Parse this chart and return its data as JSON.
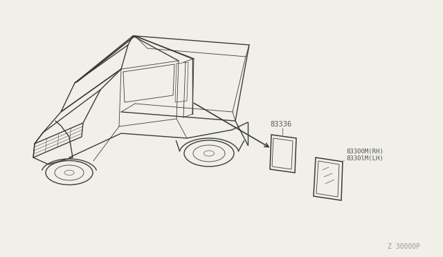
{
  "bg_color": "#f0efe8",
  "line_color": "#3a3a3a",
  "label_color": "#555555",
  "part_label_1": "83336",
  "part_label_2": "83300M(RH)",
  "part_label_3": "8330lM(LH)",
  "watermark": "Z 30000P",
  "fig_width": 6.4,
  "fig_height": 3.72,
  "dpi": 100
}
